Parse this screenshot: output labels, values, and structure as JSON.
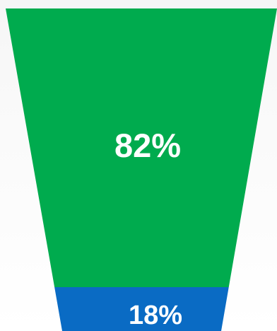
{
  "chart_data": {
    "type": "funnel",
    "title": "",
    "segments": [
      {
        "label": "82%",
        "value": 82,
        "color": "#00ab4e"
      },
      {
        "label": "18%",
        "value": 18,
        "color": "#0a6bc4"
      }
    ],
    "legend": "none",
    "grid": false
  }
}
